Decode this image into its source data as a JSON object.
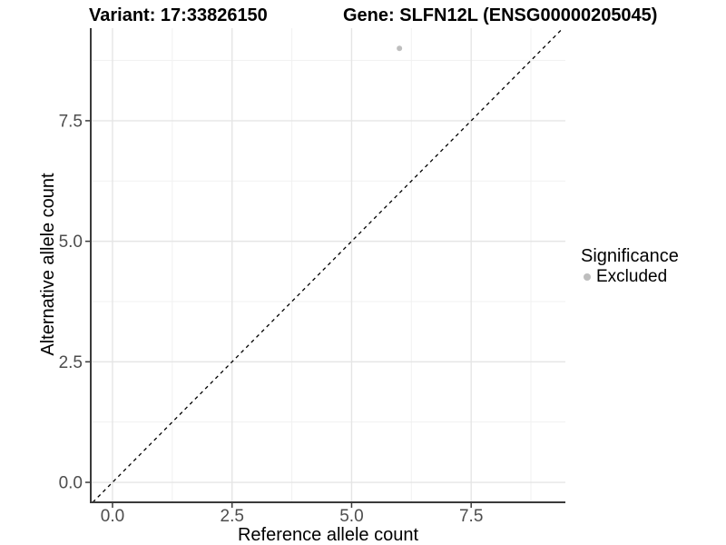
{
  "chart_data": {
    "type": "scatter",
    "titles": {
      "left": "Variant: 17:33826150",
      "right": "Gene: SLFN12L (ENSG00000205045)"
    },
    "xlabel": "Reference allele count",
    "ylabel": "Alternative allele count",
    "xlim": [
      -0.455,
      9.47
    ],
    "ylim": [
      -0.414,
      9.42
    ],
    "x_ticks": {
      "values": [
        0,
        2.5,
        5,
        7.5
      ],
      "labels": [
        "0.0",
        "2.5",
        "5.0",
        "7.5"
      ]
    },
    "y_ticks": {
      "values": [
        0,
        2.5,
        5,
        7.5
      ],
      "labels": [
        "0.0",
        "2.5",
        "5.0",
        "7.5"
      ]
    },
    "x_minor_ticks": [
      1.25,
      3.75,
      6.25,
      8.75
    ],
    "y_minor_ticks": [
      1.25,
      3.75,
      6.25,
      8.75
    ],
    "grid": "major and minor gridlines, white background",
    "identity_line": {
      "equation": "y = x",
      "style": "dashed",
      "color": "#000000"
    },
    "series": [
      {
        "name": "Excluded",
        "color": "#bebebe",
        "points": [
          {
            "x": 6,
            "y": 9
          }
        ]
      }
    ],
    "legend": {
      "title": "Significance",
      "position": "right",
      "items": [
        {
          "label": "Excluded",
          "color": "#bebebe",
          "marker": "circle"
        }
      ]
    }
  },
  "colors": {
    "background": "#ffffff",
    "axis_line": "#3a3a3a",
    "tick_mark": "#3a3a3a",
    "tick_label": "#4d4d4d",
    "grid_major": "#e5e5e5",
    "grid_minor": "#f1f1f1",
    "point": "#bebebe",
    "identity_line": "#000000",
    "title": "#000000"
  }
}
